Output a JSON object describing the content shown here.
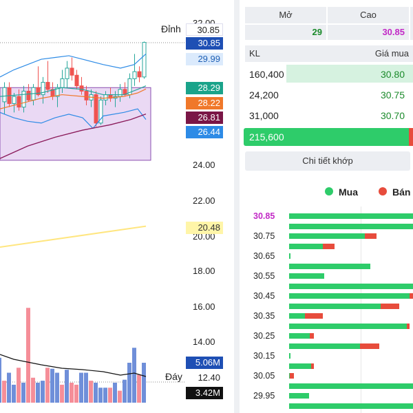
{
  "chart": {
    "price_ticks": [
      "32.00",
      "24.00",
      "22.00",
      "20.00",
      "18.00",
      "16.00",
      "14.00",
      "12.40"
    ],
    "labels": {
      "top": "Đỉnh",
      "bottom": "Đáy"
    },
    "tags": [
      {
        "text": "30.85",
        "kind": "peak"
      },
      {
        "text": "30.85",
        "kind": "last"
      },
      {
        "text": "29.99",
        "kind": "bb-upper"
      },
      {
        "text": "28.29",
        "kind": "ma-teal"
      },
      {
        "text": "28.22",
        "kind": "ma-orange"
      },
      {
        "text": "26.81",
        "kind": "ma-purple"
      },
      {
        "text": "26.44",
        "kind": "bb-lower"
      },
      {
        "text": "20.48",
        "kind": "ma-yellow"
      },
      {
        "text": "5.06M",
        "kind": "volume"
      },
      {
        "text": "12.40",
        "kind": "bottom"
      },
      {
        "text": "3.42M",
        "kind": "volume-ma"
      }
    ],
    "colors": {
      "up": "#26a69a",
      "down": "#ef5350",
      "box": "#e3ccf0",
      "bb": "#2d8be6",
      "ma_orange": "#f0782a",
      "ma_teal": "#26a69a",
      "ma_purple": "#8a1a5a",
      "ma_yellow": "#ffe680"
    }
  },
  "header": {
    "columns": [
      {
        "label": "Mở",
        "value": "29",
        "value_color": "#1a8a2a"
      },
      {
        "label": "Cao",
        "value": "30.85",
        "value_color": "#c229c6"
      }
    ]
  },
  "orderbook": {
    "col_vol": "KL",
    "col_bid": "Giá mua",
    "rows": [
      {
        "vol": "160,400",
        "price": "30.80",
        "bar": 1.0
      },
      {
        "vol": "24,200",
        "price": "30.75",
        "bar": 0.0
      },
      {
        "vol": "31,000",
        "price": "30.70",
        "bar": 0.0
      }
    ],
    "total": "215,600",
    "detail_button": "Chi tiết khớp"
  },
  "legend": {
    "buy": "Mua",
    "sell": "Bán"
  },
  "volume_profile": [
    {
      "price": "30.85",
      "buy": 1.0,
      "sell": 0.0,
      "highlight": true
    },
    {
      "price": "",
      "buy": 1.0,
      "sell": 0.0
    },
    {
      "price": "30.75",
      "buy": 0.58,
      "sell": 0.09
    },
    {
      "price": "",
      "buy": 0.26,
      "sell": 0.09
    },
    {
      "price": "30.65",
      "buy": 0.01,
      "sell": 0.0
    },
    {
      "price": "",
      "buy": 0.62,
      "sell": 0.0
    },
    {
      "price": "30.55",
      "buy": 0.27,
      "sell": 0.0
    },
    {
      "price": "",
      "buy": 1.0,
      "sell": 0.0
    },
    {
      "price": "30.45",
      "buy": 0.92,
      "sell": 0.1
    },
    {
      "price": "",
      "buy": 0.7,
      "sell": 0.14
    },
    {
      "price": "30.35",
      "buy": 0.12,
      "sell": 0.14
    },
    {
      "price": "",
      "buy": 0.9,
      "sell": 0.02
    },
    {
      "price": "30.25",
      "buy": 0.16,
      "sell": 0.03
    },
    {
      "price": "",
      "buy": 0.54,
      "sell": 0.15
    },
    {
      "price": "30.15",
      "buy": 0.01,
      "sell": 0.0
    },
    {
      "price": "",
      "buy": 0.17,
      "sell": 0.02
    },
    {
      "price": "30.05",
      "buy": 0.0,
      "sell": 0.03
    },
    {
      "price": "",
      "buy": 1.0,
      "sell": 0.0
    },
    {
      "price": "29.95",
      "buy": 0.15,
      "sell": 0.0
    },
    {
      "price": "",
      "buy": 1.0,
      "sell": 0.0
    }
  ]
}
